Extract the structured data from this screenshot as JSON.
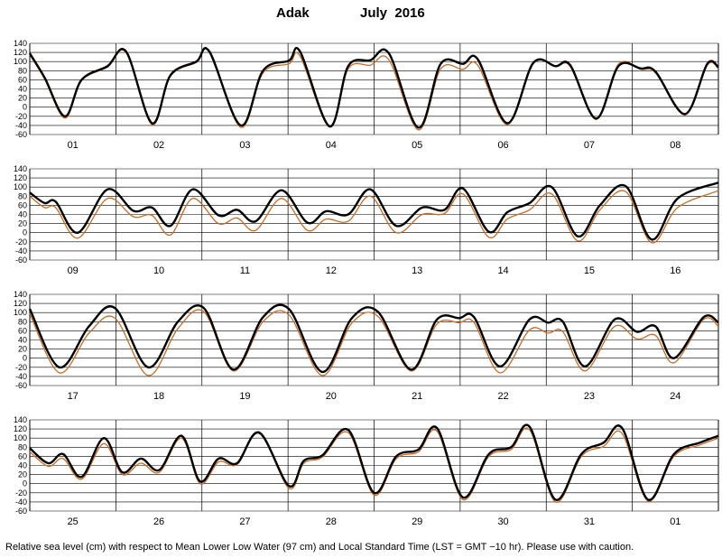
{
  "title": {
    "station": "Adak",
    "month": "July  2016"
  },
  "footer": "Relative sea level (cm) with respect to Mean Lower Low Water (97 cm) and Local Standard Time (LST = GMT −10 hr). Please use with caution.",
  "colors": {
    "predicted": "#000000",
    "observed": "#d2691e",
    "grid": "#000000"
  },
  "chart_data": {
    "type": "line",
    "ylim": [
      -60,
      140
    ],
    "yticks": [
      -60,
      -40,
      -20,
      0,
      20,
      40,
      60,
      80,
      100,
      120,
      140
    ],
    "grid": true,
    "series_labels": [
      "",
      ""
    ],
    "panels": [
      {
        "days": [
          "01",
          "02",
          "03",
          "04",
          "05",
          "06",
          "07",
          "08"
        ],
        "predicted": [
          [
            0,
            118
          ],
          [
            0.4,
            65
          ],
          [
            0.95,
            -20
          ],
          [
            1.4,
            60
          ],
          [
            2.1,
            90
          ],
          [
            2.6,
            122
          ],
          [
            3.3,
            -35
          ],
          [
            3.8,
            70
          ],
          [
            4.5,
            100
          ],
          [
            4.85,
            122
          ],
          [
            5.7,
            -40
          ],
          [
            6.3,
            80
          ],
          [
            7.0,
            102
          ],
          [
            7.3,
            122
          ],
          [
            8.1,
            -42
          ],
          [
            8.6,
            90
          ],
          [
            9.2,
            103
          ],
          [
            9.7,
            118
          ],
          [
            10.5,
            -45
          ],
          [
            11.1,
            95
          ],
          [
            11.7,
            95
          ],
          [
            12.1,
            105
          ],
          [
            12.9,
            -35
          ],
          [
            13.6,
            97
          ],
          [
            14.2,
            90
          ],
          [
            14.6,
            92
          ],
          [
            15.3,
            -25
          ],
          [
            15.9,
            90
          ],
          [
            16.5,
            85
          ],
          [
            16.9,
            78
          ],
          [
            17.7,
            -15
          ],
          [
            18.3,
            95
          ],
          [
            18.6,
            88
          ]
        ],
        "observed": [
          [
            0,
            115
          ],
          [
            0.4,
            62
          ],
          [
            0.95,
            -24
          ],
          [
            1.4,
            58
          ],
          [
            2.1,
            88
          ],
          [
            2.6,
            120
          ],
          [
            3.3,
            -38
          ],
          [
            3.8,
            68
          ],
          [
            4.5,
            98
          ],
          [
            4.85,
            120
          ],
          [
            5.7,
            -44
          ],
          [
            6.3,
            75
          ],
          [
            7.0,
            95
          ],
          [
            7.3,
            112
          ],
          [
            8.1,
            -44
          ],
          [
            8.6,
            84
          ],
          [
            9.2,
            92
          ],
          [
            9.7,
            104
          ],
          [
            10.5,
            -50
          ],
          [
            11.1,
            84
          ],
          [
            11.7,
            83
          ],
          [
            12.1,
            92
          ],
          [
            12.9,
            -38
          ],
          [
            13.6,
            98
          ],
          [
            14.2,
            89
          ],
          [
            14.6,
            89
          ],
          [
            15.3,
            -27
          ],
          [
            15.9,
            94
          ],
          [
            16.5,
            83
          ],
          [
            16.9,
            75
          ],
          [
            17.7,
            -17
          ],
          [
            18.3,
            92
          ],
          [
            18.6,
            85
          ]
        ]
      },
      {
        "days": [
          "09",
          "10",
          "11",
          "12",
          "13",
          "14",
          "15",
          "16"
        ],
        "predicted": [
          [
            0,
            88
          ],
          [
            0.4,
            65
          ],
          [
            0.7,
            68
          ],
          [
            1.3,
            0
          ],
          [
            2.1,
            95
          ],
          [
            2.8,
            48
          ],
          [
            3.3,
            55
          ],
          [
            3.8,
            15
          ],
          [
            4.4,
            95
          ],
          [
            5.1,
            38
          ],
          [
            5.6,
            50
          ],
          [
            6.1,
            25
          ],
          [
            6.8,
            93
          ],
          [
            7.5,
            22
          ],
          [
            8.0,
            47
          ],
          [
            8.6,
            40
          ],
          [
            9.2,
            95
          ],
          [
            9.9,
            15
          ],
          [
            10.6,
            55
          ],
          [
            11.2,
            50
          ],
          [
            11.7,
            97
          ],
          [
            12.4,
            2
          ],
          [
            12.9,
            45
          ],
          [
            13.5,
            65
          ],
          [
            14.1,
            100
          ],
          [
            14.8,
            -8
          ],
          [
            15.4,
            60
          ],
          [
            16.1,
            102
          ],
          [
            16.8,
            -15
          ],
          [
            17.5,
            75
          ],
          [
            18.6,
            110
          ]
        ],
        "observed": [
          [
            0,
            80
          ],
          [
            0.4,
            55
          ],
          [
            0.7,
            55
          ],
          [
            1.3,
            -12
          ],
          [
            2.1,
            75
          ],
          [
            2.8,
            35
          ],
          [
            3.3,
            38
          ],
          [
            3.8,
            -5
          ],
          [
            4.4,
            75
          ],
          [
            5.1,
            20
          ],
          [
            5.6,
            32
          ],
          [
            6.1,
            5
          ],
          [
            6.8,
            75
          ],
          [
            7.5,
            5
          ],
          [
            8.0,
            30
          ],
          [
            8.6,
            25
          ],
          [
            9.2,
            80
          ],
          [
            9.9,
            0
          ],
          [
            10.6,
            40
          ],
          [
            11.2,
            42
          ],
          [
            11.7,
            85
          ],
          [
            12.4,
            -10
          ],
          [
            12.9,
            30
          ],
          [
            13.5,
            50
          ],
          [
            14.1,
            85
          ],
          [
            14.8,
            -18
          ],
          [
            15.4,
            50
          ],
          [
            16.1,
            90
          ],
          [
            16.8,
            -22
          ],
          [
            17.5,
            55
          ],
          [
            18.6,
            92
          ]
        ]
      },
      {
        "days": [
          "17",
          "18",
          "19",
          "20",
          "21",
          "22",
          "23",
          "24"
        ],
        "predicted": [
          [
            0,
            108
          ],
          [
            0.8,
            -20
          ],
          [
            1.6,
            70
          ],
          [
            2.3,
            110
          ],
          [
            3.2,
            -20
          ],
          [
            4.0,
            80
          ],
          [
            4.7,
            110
          ],
          [
            5.5,
            -25
          ],
          [
            6.3,
            90
          ],
          [
            7.0,
            108
          ],
          [
            7.9,
            -30
          ],
          [
            8.7,
            88
          ],
          [
            9.4,
            102
          ],
          [
            10.3,
            -25
          ],
          [
            11.0,
            85
          ],
          [
            11.6,
            88
          ],
          [
            12.0,
            90
          ],
          [
            12.7,
            -18
          ],
          [
            13.5,
            85
          ],
          [
            14.0,
            78
          ],
          [
            14.4,
            80
          ],
          [
            15.0,
            -18
          ],
          [
            15.8,
            85
          ],
          [
            16.4,
            58
          ],
          [
            16.9,
            70
          ],
          [
            17.4,
            0
          ],
          [
            18.2,
            90
          ],
          [
            18.6,
            78
          ]
        ],
        "observed": [
          [
            0,
            98
          ],
          [
            0.8,
            -32
          ],
          [
            1.6,
            55
          ],
          [
            2.3,
            88
          ],
          [
            3.2,
            -38
          ],
          [
            4.0,
            65
          ],
          [
            4.7,
            102
          ],
          [
            5.5,
            -28
          ],
          [
            6.3,
            80
          ],
          [
            7.0,
            95
          ],
          [
            7.9,
            -38
          ],
          [
            8.7,
            77
          ],
          [
            9.4,
            92
          ],
          [
            10.3,
            -28
          ],
          [
            11.0,
            75
          ],
          [
            11.6,
            78
          ],
          [
            12.0,
            78
          ],
          [
            12.7,
            -32
          ],
          [
            13.5,
            62
          ],
          [
            14.0,
            55
          ],
          [
            14.4,
            58
          ],
          [
            15.0,
            -28
          ],
          [
            15.8,
            70
          ],
          [
            16.4,
            42
          ],
          [
            16.9,
            50
          ],
          [
            17.4,
            -10
          ],
          [
            18.2,
            85
          ],
          [
            18.6,
            70
          ]
        ]
      },
      {
        "days": [
          "25",
          "26",
          "27",
          "28",
          "29",
          "30",
          "31",
          "01"
        ],
        "predicted": [
          [
            0,
            78
          ],
          [
            0.5,
            45
          ],
          [
            0.9,
            65
          ],
          [
            1.4,
            15
          ],
          [
            2.0,
            100
          ],
          [
            2.5,
            25
          ],
          [
            3.0,
            55
          ],
          [
            3.5,
            30
          ],
          [
            4.1,
            105
          ],
          [
            4.6,
            5
          ],
          [
            5.1,
            55
          ],
          [
            5.6,
            45
          ],
          [
            6.2,
            112
          ],
          [
            7.0,
            -5
          ],
          [
            7.4,
            50
          ],
          [
            7.9,
            62
          ],
          [
            8.6,
            118
          ],
          [
            9.3,
            -20
          ],
          [
            9.9,
            60
          ],
          [
            10.5,
            75
          ],
          [
            11.0,
            122
          ],
          [
            11.7,
            -30
          ],
          [
            12.4,
            65
          ],
          [
            13.0,
            80
          ],
          [
            13.5,
            125
          ],
          [
            14.2,
            -35
          ],
          [
            14.9,
            65
          ],
          [
            15.5,
            90
          ],
          [
            16.0,
            122
          ],
          [
            16.7,
            -35
          ],
          [
            17.4,
            65
          ],
          [
            18.1,
            90
          ],
          [
            18.6,
            105
          ]
        ],
        "observed": [
          [
            0,
            70
          ],
          [
            0.5,
            38
          ],
          [
            0.9,
            55
          ],
          [
            1.4,
            10
          ],
          [
            2.0,
            88
          ],
          [
            2.5,
            20
          ],
          [
            3.0,
            45
          ],
          [
            3.5,
            25
          ],
          [
            4.1,
            100
          ],
          [
            4.6,
            0
          ],
          [
            5.1,
            48
          ],
          [
            5.6,
            42
          ],
          [
            6.2,
            110
          ],
          [
            7.0,
            -10
          ],
          [
            7.4,
            45
          ],
          [
            7.9,
            58
          ],
          [
            8.6,
            112
          ],
          [
            9.3,
            -25
          ],
          [
            9.9,
            55
          ],
          [
            10.5,
            70
          ],
          [
            11.0,
            115
          ],
          [
            11.7,
            -35
          ],
          [
            12.4,
            60
          ],
          [
            13.0,
            75
          ],
          [
            13.5,
            118
          ],
          [
            14.2,
            -40
          ],
          [
            14.9,
            60
          ],
          [
            15.5,
            82
          ],
          [
            16.0,
            110
          ],
          [
            16.7,
            -38
          ],
          [
            17.4,
            60
          ],
          [
            18.1,
            85
          ],
          [
            18.6,
            100
          ]
        ]
      }
    ]
  }
}
